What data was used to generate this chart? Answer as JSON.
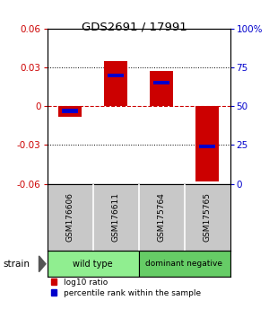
{
  "title": "GDS2691 / 17991",
  "samples": [
    "GSM176606",
    "GSM176611",
    "GSM175764",
    "GSM175765"
  ],
  "log10_ratio": [
    -0.008,
    0.035,
    0.027,
    -0.058
  ],
  "percentile_rank": [
    47,
    70,
    65,
    24
  ],
  "ylim": [
    -0.06,
    0.06
  ],
  "yticks": [
    -0.06,
    -0.03,
    0.0,
    0.03,
    0.06
  ],
  "ytick_labels": [
    "-0.06",
    "-0.03",
    "0",
    "0.03",
    "0.06"
  ],
  "y2ticks_pct": [
    0,
    25,
    50,
    75,
    100
  ],
  "y2ticklabels": [
    "0",
    "25",
    "50",
    "75",
    "100%"
  ],
  "groups": [
    {
      "label": "wild type",
      "samples": [
        0,
        1
      ],
      "color": "#90ee90"
    },
    {
      "label": "dominant negative",
      "samples": [
        2,
        3
      ],
      "color": "#66cc66"
    }
  ],
  "bar_width": 0.5,
  "blue_bar_width": 0.35,
  "bar_color_red": "#cc0000",
  "bar_color_blue": "#0000cc",
  "bg_color": "#ffffff",
  "plot_bg": "#ffffff",
  "label_area_color": "#c8c8c8",
  "title_color": "#000000",
  "left_axis_color": "#cc0000",
  "right_axis_color": "#0000cc",
  "zero_line_color": "#cc0000",
  "legend_red_label": "log10 ratio",
  "legend_blue_label": "percentile rank within the sample"
}
